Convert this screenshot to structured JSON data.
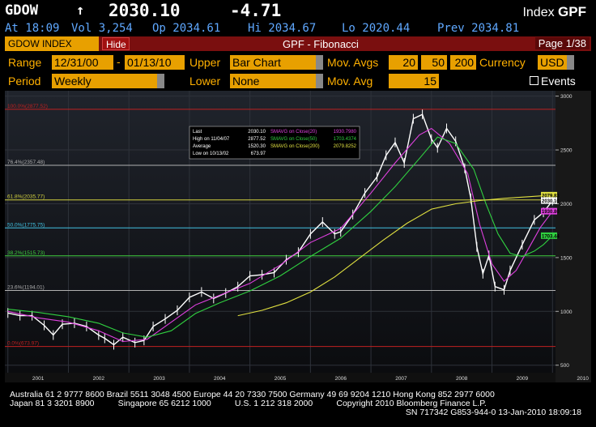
{
  "header": {
    "ticker": "GDOW",
    "arrow": "↑",
    "price": "2030.10",
    "change": "-4.71",
    "index_label": "Index",
    "index_code": "GPF"
  },
  "quote": {
    "time": "At 18:09",
    "volume": "Vol 3,254",
    "open": "Op 2034.61",
    "high": "Hi 2034.67",
    "low": "Lo 2020.44",
    "prev": "Prev 2034.81"
  },
  "toolbar": {
    "security": "GDOW INDEX",
    "hide_label": "Hide",
    "title": "GPF - Fibonacci",
    "page": "Page 1/38"
  },
  "controls": {
    "range_label": "Range",
    "range_start": "12/31/00",
    "range_sep": "-",
    "range_end": "01/13/10",
    "upper_label": "Upper",
    "upper_value": "Bar Chart",
    "movavgs_label": "Mov. Avgs",
    "ma1": "20",
    "ma2": "50",
    "ma3": "200",
    "currency_label": "Currency",
    "currency_value": "USD",
    "period_label": "Period",
    "period_value": "Weekly",
    "lower_label": "Lower",
    "lower_value": "None",
    "movavg_label": "Mov. Avg",
    "movavg_value": "15",
    "events_label": "Events"
  },
  "legend": {
    "rows": [
      {
        "label": "Last",
        "value": "2030.10"
      },
      {
        "label": "High on 11/04/07",
        "value": "2877.52"
      },
      {
        "label": "Average",
        "value": "1520.30"
      },
      {
        "label": "Low on 10/13/02",
        "value": "673.97"
      }
    ],
    "ma_rows": [
      {
        "label": "SMAVG on Close(20)",
        "value": "1930.7980",
        "color": "#e040e0"
      },
      {
        "label": "SMAVG on Close(50)",
        "value": "1703.4374",
        "color": "#30d040"
      },
      {
        "label": "SMAVG on Close(200)",
        "value": "2079.8252",
        "color": "#e0e040"
      }
    ]
  },
  "fib_levels": [
    {
      "label": "100.0%(2877.52)",
      "value": 2877.52,
      "color": "#c02020"
    },
    {
      "label": "76.4%(2357.48)",
      "value": 2357.48,
      "color": "#b0b0b0"
    },
    {
      "label": "61.8%(2035.77)",
      "value": 2035.77,
      "color": "#d0d040"
    },
    {
      "label": "50.0%(1775.75)",
      "value": 1775.75,
      "color": "#40c0e0"
    },
    {
      "label": "38.2%(1515.73)",
      "value": 1515.73,
      "color": "#40d040"
    },
    {
      "label": "23.6%(1194.01)",
      "value": 1194.01,
      "color": "#b0b0b0"
    },
    {
      "label": "0.0%(673.97)",
      "value": 673.97,
      "color": "#c02020"
    }
  ],
  "right_tags": [
    {
      "text": "2079.83",
      "value": 2079.83,
      "color": "#e0e040",
      "fg": "#000"
    },
    {
      "text": "2030.10",
      "value": 2030.1,
      "color": "#ffffff",
      "fg": "#000"
    },
    {
      "text": "1930.80",
      "value": 1930.8,
      "color": "#e040e0",
      "fg": "#000"
    },
    {
      "text": "1703.44",
      "value": 1703.44,
      "color": "#30d040",
      "fg": "#000"
    }
  ],
  "chart_data": {
    "type": "line",
    "title": "GPF - Fibonacci",
    "xlabel": "",
    "ylabel": "",
    "x_ticks": [
      "2001",
      "2002",
      "2003",
      "2004",
      "2005",
      "2006",
      "2007",
      "2008",
      "2009",
      "2010"
    ],
    "y_ticks": [
      500,
      1000,
      1500,
      2000,
      2500,
      3000
    ],
    "ylim": [
      430,
      3050
    ],
    "xlim": [
      2000.95,
      2010.05
    ],
    "grid": true,
    "series": [
      {
        "name": "GDOW INDEX",
        "color": "#ffffff",
        "x": [
          2001.0,
          2001.2,
          2001.4,
          2001.6,
          2001.75,
          2001.9,
          2002.1,
          2002.3,
          2002.5,
          2002.6,
          2002.75,
          2002.9,
          2003.1,
          2003.25,
          2003.4,
          2003.6,
          2003.8,
          2004.0,
          2004.2,
          2004.4,
          2004.6,
          2004.8,
          2005.0,
          2005.2,
          2005.4,
          2005.6,
          2005.8,
          2006.0,
          2006.2,
          2006.4,
          2006.5,
          2006.7,
          2006.9,
          2007.1,
          2007.25,
          2007.4,
          2007.55,
          2007.7,
          2007.85,
          2008.0,
          2008.1,
          2008.25,
          2008.4,
          2008.55,
          2008.65,
          2008.75,
          2008.85,
          2008.95,
          2009.05,
          2009.2,
          2009.3,
          2009.5,
          2009.7,
          2009.85,
          2010.0
        ],
        "y": [
          985,
          960,
          960,
          870,
          780,
          880,
          890,
          860,
          780,
          750,
          690,
          760,
          710,
          730,
          860,
          930,
          1010,
          1130,
          1180,
          1120,
          1170,
          1230,
          1330,
          1340,
          1360,
          1480,
          1550,
          1720,
          1830,
          1720,
          1740,
          1900,
          2100,
          2250,
          2450,
          2570,
          2380,
          2790,
          2830,
          2600,
          2520,
          2700,
          2580,
          2330,
          2050,
          1600,
          1350,
          1520,
          1230,
          1200,
          1380,
          1620,
          1850,
          1920,
          2030
        ]
      },
      {
        "name": "SMAVG on Close(20)",
        "color": "#e040e0",
        "x": [
          2001.0,
          2001.5,
          2002.0,
          2002.5,
          2002.9,
          2003.3,
          2003.7,
          2004.1,
          2004.5,
          2005.0,
          2005.5,
          2006.0,
          2006.5,
          2007.0,
          2007.4,
          2007.8,
          2008.0,
          2008.3,
          2008.6,
          2008.8,
          2009.0,
          2009.2,
          2009.4,
          2009.6,
          2009.8,
          2010.0
        ],
        "y": [
          1000,
          940,
          900,
          820,
          720,
          740,
          900,
          1060,
          1150,
          1260,
          1430,
          1640,
          1770,
          2100,
          2380,
          2640,
          2700,
          2560,
          2280,
          1800,
          1440,
          1280,
          1380,
          1580,
          1780,
          1930
        ]
      },
      {
        "name": "SMAVG on Close(50)",
        "color": "#30d040",
        "x": [
          2001.0,
          2001.5,
          2002.0,
          2002.5,
          2002.9,
          2003.3,
          2003.7,
          2004.1,
          2004.5,
          2005.0,
          2005.5,
          2006.0,
          2006.5,
          2007.0,
          2007.4,
          2007.8,
          2008.1,
          2008.4,
          2008.7,
          2008.9,
          2009.1,
          2009.3,
          2009.5,
          2009.7,
          2009.85,
          2010.0
        ],
        "y": [
          1020,
          990,
          950,
          890,
          800,
          760,
          820,
          980,
          1080,
          1190,
          1330,
          1510,
          1680,
          1930,
          2160,
          2420,
          2620,
          2560,
          2320,
          2000,
          1720,
          1540,
          1510,
          1560,
          1620,
          1703
        ]
      },
      {
        "name": "SMAVG on Close(200)",
        "color": "#e0e040",
        "x": [
          2004.8,
          2005.2,
          2005.6,
          2006.0,
          2006.4,
          2006.8,
          2007.2,
          2007.6,
          2008.0,
          2008.4,
          2008.8,
          2009.2,
          2009.6,
          2010.0
        ],
        "y": [
          960,
          1010,
          1080,
          1180,
          1320,
          1490,
          1660,
          1820,
          1950,
          2000,
          2030,
          2050,
          2065,
          2080
        ]
      }
    ]
  },
  "footer": {
    "line1": "Australia 61 2 9777 8600 Brazil 5511 3048 4500 Europe 44 20 7330 7500 Germany 49 69 9204 1210 Hong Kong 852 2977 6000",
    "line2": "Japan 81 3 3201 8900          Singapore 65 6212 1000          U.S. 1 212 318 2000          Copyright 2010 Bloomberg Finance L.P.",
    "line3": "SN 717342 G853-944-0 13-Jan-2010 18:09:18"
  }
}
